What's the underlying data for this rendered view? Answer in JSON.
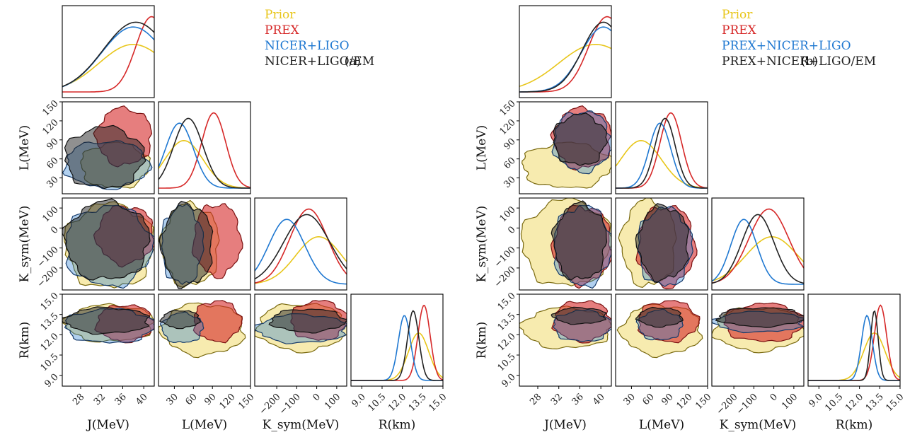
{
  "colors": {
    "prior": "#E8C61A",
    "prex": "#D62828",
    "nicer": "#1F78D1",
    "em": "#222222"
  },
  "parameters": [
    {
      "key": "J",
      "label": "J(MeV)",
      "ticks": [
        28,
        32,
        36,
        40
      ],
      "tick_labels": [
        "28",
        "32",
        "36",
        "40"
      ],
      "range": [
        24.5,
        42
      ]
    },
    {
      "key": "L",
      "label": "L(MeV)",
      "ticks": [
        30,
        60,
        90,
        120,
        150
      ],
      "tick_labels": [
        "30",
        "60",
        "90",
        "120",
        "150"
      ],
      "range": [
        5,
        150
      ]
    },
    {
      "key": "Ksym",
      "label": "K_sym(MeV)",
      "ticks": [
        -200,
        -100,
        0,
        100
      ],
      "tick_labels": [
        "−200",
        "−100",
        "0",
        "100"
      ],
      "range": [
        -310,
        150
      ]
    },
    {
      "key": "R",
      "label": "R(km)",
      "ticks": [
        9.0,
        10.5,
        12.0,
        13.5,
        15.0
      ],
      "tick_labels": [
        "9.0",
        "10.5",
        "12.0",
        "13.5",
        "15.0"
      ],
      "range": [
        8.2,
        15.0
      ]
    }
  ],
  "chart_data": [
    {
      "type": "area",
      "panel": "(a)",
      "legend": [
        "Prior",
        "PREX",
        "NICER+LIGO",
        "NICER+LIGO/EM"
      ],
      "marginals": {
        "J": {
          "Prior": {
            "mean": 38,
            "sd": 6.5
          },
          "PREX": {
            "mean": 41.5,
            "sd": 3.0
          },
          "NICER": {
            "mean": 38,
            "sd": 6.0
          },
          "EM": {
            "mean": 38.5,
            "sd": 6.2
          }
        },
        "L": {
          "Prior": {
            "mean": 45,
            "sd": 30
          },
          "PREX": {
            "mean": 92,
            "sd": 19
          },
          "NICER": {
            "mean": 38,
            "sd": 22
          },
          "EM": {
            "mean": 52,
            "sd": 23
          }
        },
        "Ksym": {
          "Prior": {
            "mean": 10,
            "sd": 115
          },
          "PREX": {
            "mean": -40,
            "sd": 95
          },
          "NICER": {
            "mean": -150,
            "sd": 90
          },
          "EM": {
            "mean": -50,
            "sd": 115
          }
        },
        "R": {
          "Prior": {
            "mean": 13.2,
            "sd": 0.75
          },
          "PREX": {
            "mean": 13.6,
            "sd": 0.45
          },
          "NICER": {
            "mean": 12.15,
            "sd": 0.45
          },
          "EM": {
            "mean": 12.8,
            "sd": 0.42
          }
        }
      },
      "regions": {
        "L_vs_J": {
          "Prior": [
            28,
            41,
            14,
            85
          ],
          "PREX": [
            31,
            41.5,
            50,
            140
          ],
          "NICER": [
            25,
            41,
            14,
            88
          ],
          "EM": [
            25,
            40,
            14,
            110
          ]
        },
        "Ksym_vs_J": {
          "Prior": [
            25,
            42,
            -300,
            120
          ],
          "PREX": [
            31,
            42,
            -180,
            110
          ],
          "NICER": [
            25,
            41.5,
            -290,
            110
          ],
          "EM": [
            25,
            41,
            -260,
            130
          ]
        },
        "Ksym_vs_L": {
          "Prior": [
            10,
            100,
            -290,
            120
          ],
          "PREX": [
            60,
            135,
            -240,
            120
          ],
          "NICER": [
            10,
            75,
            -280,
            110
          ],
          "EM": [
            10,
            90,
            -290,
            120
          ]
        },
        "R_vs_J": {
          "Prior": [
            25,
            42,
            11.5,
            14.2
          ],
          "PREX": [
            31,
            42,
            11.5,
            14.2
          ],
          "NICER": [
            25,
            42,
            11.4,
            13.9
          ],
          "EM": [
            25,
            41,
            12.1,
            14.0
          ]
        },
        "R_vs_L": {
          "Prior": [
            10,
            140,
            10.5,
            14.3
          ],
          "PREX": [
            60,
            135,
            11.5,
            14.5
          ],
          "NICER": [
            10,
            75,
            11.4,
            13.6
          ],
          "EM": [
            10,
            70,
            12.5,
            13.8
          ]
        },
        "R_vs_Ksym": {
          "Prior": [
            -300,
            150,
            10.8,
            14.3
          ],
          "PREX": [
            -130,
            150,
            11.6,
            14.5
          ],
          "NICER": [
            -300,
            150,
            11.4,
            13.5
          ],
          "EM": [
            -230,
            140,
            12.2,
            13.9
          ]
        }
      }
    },
    {
      "type": "area",
      "panel": "(b)",
      "legend": [
        "Prior",
        "PREX",
        "PREX+NICER+LIGO",
        "PREX+NICER+LIGO/EM"
      ],
      "marginals": {
        "J": {
          "Prior": {
            "mean": 39,
            "sd": 7.0
          },
          "PREX": {
            "mean": 41.2,
            "sd": 3.5
          },
          "NICER": {
            "mean": 40.5,
            "sd": 4.2
          },
          "EM": {
            "mean": 40.5,
            "sd": 4.0
          }
        },
        "L": {
          "Prior": {
            "mean": 45,
            "sd": 32
          },
          "PREX": {
            "mean": 92,
            "sd": 17
          },
          "NICER": {
            "mean": 75,
            "sd": 17
          },
          "EM": {
            "mean": 83,
            "sd": 16
          }
        },
        "Ksym": {
          "Prior": {
            "mean": -10,
            "sd": 130
          },
          "PREX": {
            "mean": -25,
            "sd": 100
          },
          "NICER": {
            "mean": -150,
            "sd": 65
          },
          "EM": {
            "mean": -80,
            "sd": 80
          }
        },
        "R": {
          "Prior": {
            "mean": 13.1,
            "sd": 0.8
          },
          "PREX": {
            "mean": 13.55,
            "sd": 0.45
          },
          "NICER": {
            "mean": 12.55,
            "sd": 0.4
          },
          "EM": {
            "mean": 13.1,
            "sd": 0.28
          }
        }
      },
      "regions": {
        "L_vs_J": {
          "Prior": [
            25,
            42,
            14,
            85
          ],
          "PREX": [
            31,
            42,
            45,
            140
          ],
          "NICER": [
            31,
            42,
            40,
            135
          ],
          "EM": [
            31,
            41,
            50,
            130
          ]
        },
        "Ksym_vs_J": {
          "Prior": [
            25,
            42,
            -290,
            140
          ],
          "PREX": [
            31,
            42,
            -280,
            110
          ],
          "NICER": [
            31,
            42,
            -290,
            110
          ],
          "EM": [
            31,
            41,
            -260,
            120
          ]
        },
        "Ksym_vs_L": {
          "Prior": [
            14,
            100,
            -290,
            140
          ],
          "PREX": [
            40,
            130,
            -290,
            110
          ],
          "NICER": [
            40,
            125,
            -290,
            100
          ],
          "EM": [
            40,
            120,
            -260,
            110
          ]
        },
        "R_vs_J": {
          "Prior": [
            25,
            42,
            11.0,
            14.0
          ],
          "PREX": [
            31,
            42,
            11.5,
            14.5
          ],
          "NICER": [
            31,
            42,
            11.5,
            13.8
          ],
          "EM": [
            31,
            41,
            12.8,
            14.0
          ]
        },
        "R_vs_L": {
          "Prior": [
            14,
            140,
            10.5,
            14.2
          ],
          "PREX": [
            40,
            135,
            11.5,
            14.5
          ],
          "NICER": [
            40,
            110,
            11.6,
            13.8
          ],
          "EM": [
            40,
            110,
            12.6,
            14.0
          ]
        },
        "R_vs_Ksym": {
          "Prior": [
            -300,
            150,
            10.8,
            14.0
          ],
          "PREX": [
            -250,
            150,
            11.5,
            14.3
          ],
          "NICER": [
            -300,
            150,
            12.2,
            13.7
          ],
          "EM": [
            -280,
            150,
            12.6,
            14.0
          ]
        }
      }
    }
  ]
}
